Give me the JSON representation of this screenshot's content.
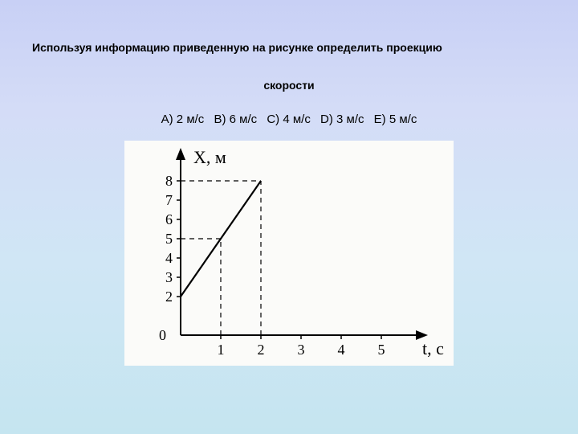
{
  "question_line1": "Используя информацию приведенную на рисунке определить проекцию",
  "question_line2": "скорости",
  "options": [
    "A) 2 м/с",
    "B) 6 м/с",
    "C) 4 м/с",
    "D) 3 м/с",
    "E) 5 м/с"
  ],
  "chart": {
    "type": "line",
    "background_color": "#fbfbf9",
    "axis_color": "#000000",
    "line_color": "#000000",
    "dashed_color": "#000000",
    "line_width": 2.2,
    "dashed_width": 1.2,
    "dash_pattern": "6,5",
    "y_axis_label": "Х, м",
    "x_axis_label": "t, с",
    "y_ticks": [
      0,
      2,
      3,
      4,
      5,
      6,
      7,
      8
    ],
    "x_ticks": [
      1,
      2,
      3,
      4,
      5
    ],
    "xlim": [
      0,
      5.5
    ],
    "ylim": [
      0,
      8.5
    ],
    "data_line": {
      "x1": 0,
      "y1": 2,
      "x2": 2,
      "y2": 8
    },
    "dashed_refs": [
      {
        "type": "h",
        "y": 5,
        "x_to": 1
      },
      {
        "type": "v",
        "x": 1,
        "y_to": 5
      },
      {
        "type": "h",
        "y": 8,
        "x_to": 2
      },
      {
        "type": "v",
        "x": 2,
        "y_to": 8
      }
    ],
    "tick_fontsize": 18,
    "label_fontsize": 22,
    "font_family": "Times New Roman"
  }
}
